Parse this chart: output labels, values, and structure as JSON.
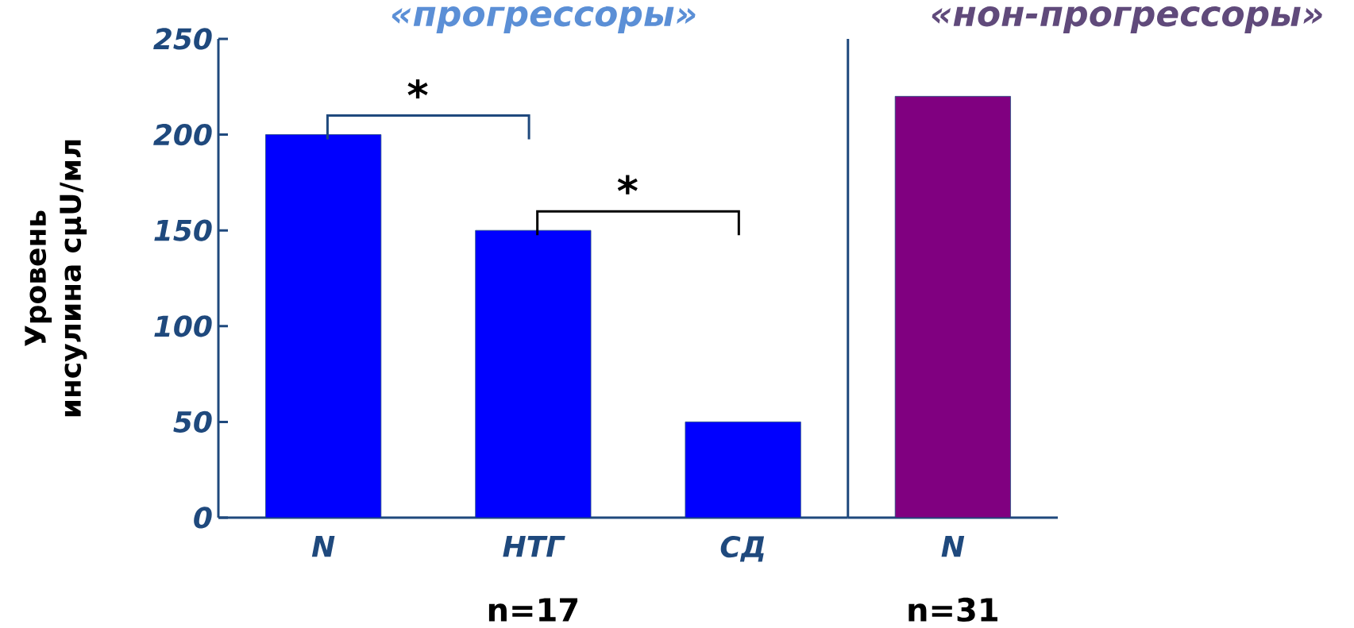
{
  "chart_data": [
    {
      "type": "bar",
      "title": "«прогрессоры»",
      "ylabel": "Уровень инсулина cμU/мл",
      "categories": [
        "N",
        "НТГ",
        "СД"
      ],
      "values": [
        200,
        150,
        50
      ],
      "color": "#0000ff",
      "ylim": [
        0,
        250
      ],
      "yticks": [
        0,
        50,
        100,
        150,
        200,
        250
      ],
      "annotations": [
        "*",
        "*",
        "n=17"
      ]
    },
    {
      "type": "bar",
      "title": "«нон-прогрессоры»",
      "categories": [
        "N"
      ],
      "values": [
        220
      ],
      "color": "#800080",
      "ylim": [
        0,
        250
      ],
      "tick_labels": "x",
      "annotations": [
        "n=31"
      ]
    }
  ]
}
